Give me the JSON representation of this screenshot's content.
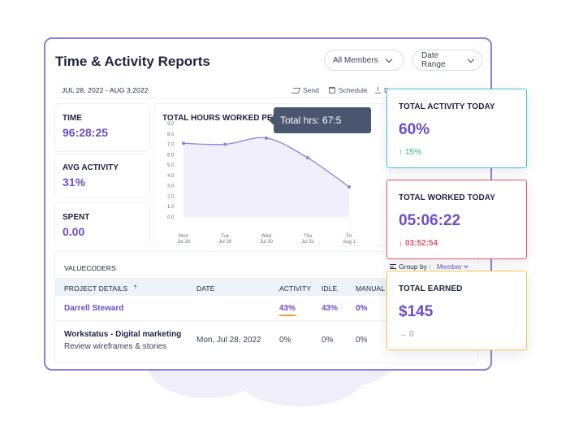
{
  "report": {
    "title": "Time & Activity Reports",
    "members_dropdown": "All Members",
    "date_range_dropdown": "Date Range",
    "date_range_text": "JUL 28, 2022 - AUG 3,2022",
    "actions": {
      "send": "Send",
      "schedule": "Schedule",
      "download": "D"
    }
  },
  "stats": {
    "time": {
      "label": "TIME",
      "value": "96:28:25"
    },
    "avg_activity": {
      "label": "AVG ACTIVITY",
      "value": "31%"
    },
    "spent": {
      "label": "SPENT",
      "value": "0.00"
    }
  },
  "chart_data": {
    "type": "line",
    "title": "TOTAL HOURS WORKED PER DAY",
    "y_ticks": [
      "9.0",
      "8.0",
      "7.0",
      "6.0",
      "5.0",
      "4.0",
      "3.0",
      "2.0",
      "1.0",
      "0.0"
    ],
    "x_ticks": [
      {
        "day": "Mon",
        "date": "Jul 28"
      },
      {
        "day": "Tue",
        "date": "Jul 29"
      },
      {
        "day": "Wed",
        "date": "Jul 30"
      },
      {
        "day": "Thu",
        "date": "Jul 31"
      },
      {
        "day": "Fri",
        "date": "Aug 1"
      }
    ],
    "values": [
      7.1,
      7.0,
      7.6,
      5.7,
      2.9
    ],
    "ylim": [
      0,
      9
    ],
    "line_color": "#8b7fe0",
    "tooltip": "Total hrs: 67:5"
  },
  "table": {
    "name": "VALUECODERS",
    "group_by_label": "Group by :",
    "group_by_value": "Member",
    "columns": [
      "PROJECT DETAILS",
      "DATE",
      "ACTIVITY",
      "IDLE",
      "MANUAL"
    ],
    "rows": [
      {
        "name": "Darrell Steward",
        "date": "",
        "activity": "43%",
        "idle": "43%",
        "manual": "0%"
      },
      {
        "name": "Workstatus - Digital marketing",
        "sub": "Review wireframes & stories",
        "date": "Mon, Jul 28, 2022",
        "activity": "0%",
        "idle": "0%",
        "manual": "0%"
      }
    ]
  },
  "cards": {
    "activity": {
      "label": "TOTAL ACTIVITY TODAY",
      "value": "60%",
      "delta": "15%",
      "border": "#3ec3d8",
      "delta_color": "#2eb872"
    },
    "worked": {
      "label": "TOTAL WORKED TODAY",
      "value": "05:06:22",
      "delta": "03:52:54",
      "border": "#e0566a",
      "delta_color": "#e0566a"
    },
    "earned": {
      "label": "TOTAL EARNED",
      "value": "$145",
      "delta": "0",
      "border": "#f2c74a",
      "delta_color": "#8a8fa6"
    }
  }
}
